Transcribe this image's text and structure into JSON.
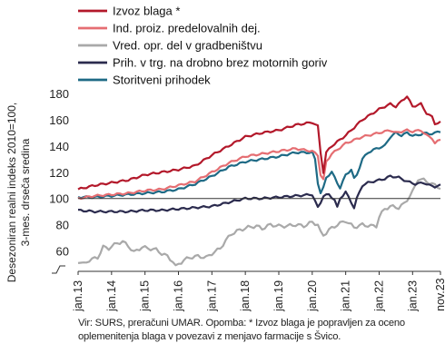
{
  "chart_data": {
    "type": "line",
    "ylabel_lines": [
      "Desezoniran realni indeks 2010=100,",
      "3-mes. drseča sredina"
    ],
    "ylim": [
      50,
      180
    ],
    "y_ticks": [
      60,
      80,
      100,
      120,
      140,
      160,
      180
    ],
    "x_ticks": [
      "jan.13",
      "jan.14",
      "jan.15",
      "jan.16",
      "jan.17",
      "jan.18",
      "jan.19",
      "jan.20",
      "jan.21",
      "jan.22",
      "jan.23",
      "nov.23"
    ],
    "x_tick_index": [
      0,
      12,
      24,
      36,
      48,
      60,
      72,
      84,
      96,
      108,
      120,
      130
    ],
    "x_start": "2013-01",
    "x_end": "2023-11",
    "reference_line": 100,
    "axis_break": true,
    "legend_position": "top-right",
    "series": [
      {
        "name": "Izvoz blaga *",
        "color": "#b3182a",
        "anchors": [
          [
            0,
            107
          ],
          [
            6,
            110
          ],
          [
            12,
            112
          ],
          [
            18,
            114
          ],
          [
            24,
            118
          ],
          [
            30,
            120
          ],
          [
            36,
            122
          ],
          [
            42,
            125
          ],
          [
            48,
            133
          ],
          [
            54,
            140
          ],
          [
            60,
            147
          ],
          [
            66,
            150
          ],
          [
            72,
            152
          ],
          [
            78,
            156
          ],
          [
            84,
            158
          ],
          [
            86,
            155
          ],
          [
            87,
            135
          ],
          [
            88,
            120
          ],
          [
            89,
            135
          ],
          [
            91,
            140
          ],
          [
            96,
            148
          ],
          [
            102,
            160
          ],
          [
            108,
            168
          ],
          [
            112,
            172
          ],
          [
            114,
            170
          ],
          [
            116,
            174
          ],
          [
            118,
            178
          ],
          [
            120,
            170
          ],
          [
            123,
            172
          ],
          [
            125,
            165
          ],
          [
            127,
            162
          ],
          [
            128,
            157
          ],
          [
            130,
            158
          ]
        ]
      },
      {
        "name": "Ind. proiz. predelovalnih dej.",
        "color": "#e56e72",
        "anchors": [
          [
            0,
            100
          ],
          [
            6,
            102
          ],
          [
            12,
            103
          ],
          [
            18,
            104
          ],
          [
            24,
            106
          ],
          [
            30,
            107
          ],
          [
            36,
            110
          ],
          [
            42,
            113
          ],
          [
            48,
            120
          ],
          [
            54,
            127
          ],
          [
            60,
            132
          ],
          [
            66,
            134
          ],
          [
            72,
            136
          ],
          [
            78,
            138
          ],
          [
            84,
            136
          ],
          [
            86,
            133
          ],
          [
            87,
            118
          ],
          [
            88,
            114
          ],
          [
            89,
            128
          ],
          [
            91,
            134
          ],
          [
            96,
            142
          ],
          [
            102,
            147
          ],
          [
            108,
            150
          ],
          [
            112,
            152
          ],
          [
            114,
            150
          ],
          [
            118,
            152
          ],
          [
            120,
            151
          ],
          [
            123,
            152
          ],
          [
            125,
            148
          ],
          [
            127,
            146
          ],
          [
            128,
            142
          ],
          [
            130,
            145
          ]
        ]
      },
      {
        "name": "Vred. opr. del v gradbeništvu",
        "color": "#a9a9a9",
        "anchors": [
          [
            0,
            52
          ],
          [
            2,
            50
          ],
          [
            4,
            53
          ],
          [
            7,
            55
          ],
          [
            9,
            63
          ],
          [
            11,
            62
          ],
          [
            14,
            66
          ],
          [
            16,
            67
          ],
          [
            18,
            64
          ],
          [
            20,
            59
          ],
          [
            23,
            63
          ],
          [
            25,
            62
          ],
          [
            28,
            61
          ],
          [
            30,
            58
          ],
          [
            32,
            56
          ],
          [
            34,
            52
          ],
          [
            35,
            48
          ],
          [
            36,
            50
          ],
          [
            38,
            53
          ],
          [
            40,
            55
          ],
          [
            43,
            56
          ],
          [
            46,
            55
          ],
          [
            48,
            58
          ],
          [
            51,
            62
          ],
          [
            53,
            68
          ],
          [
            55,
            73
          ],
          [
            58,
            76
          ],
          [
            61,
            78
          ],
          [
            64,
            79
          ],
          [
            66,
            77
          ],
          [
            69,
            80
          ],
          [
            72,
            79
          ],
          [
            75,
            79
          ],
          [
            78,
            80
          ],
          [
            81,
            79
          ],
          [
            84,
            82
          ],
          [
            86,
            80
          ],
          [
            87,
            74
          ],
          [
            88,
            72
          ],
          [
            90,
            76
          ],
          [
            93,
            80
          ],
          [
            96,
            83
          ],
          [
            99,
            78
          ],
          [
            102,
            80
          ],
          [
            105,
            79
          ],
          [
            107,
            79
          ],
          [
            108,
            86
          ],
          [
            110,
            92
          ],
          [
            112,
            94
          ],
          [
            115,
            93
          ],
          [
            117,
            96
          ],
          [
            120,
            105
          ],
          [
            122,
            115
          ],
          [
            124,
            114
          ],
          [
            126,
            112
          ],
          [
            128,
            110
          ],
          [
            130,
            108
          ]
        ]
      },
      {
        "name": "Prih. v trg. na drobno brez motornih goriv",
        "color": "#2b2b4e",
        "anchors": [
          [
            0,
            91
          ],
          [
            6,
            90
          ],
          [
            12,
            90
          ],
          [
            18,
            90
          ],
          [
            24,
            91
          ],
          [
            30,
            91
          ],
          [
            36,
            92
          ],
          [
            42,
            93
          ],
          [
            48,
            94
          ],
          [
            54,
            97
          ],
          [
            60,
            100
          ],
          [
            66,
            100
          ],
          [
            72,
            101
          ],
          [
            78,
            102
          ],
          [
            84,
            103
          ],
          [
            85,
            98
          ],
          [
            86,
            93
          ],
          [
            87,
            97
          ],
          [
            88,
            102
          ],
          [
            90,
            103
          ],
          [
            92,
            99
          ],
          [
            93,
            93
          ],
          [
            94,
            100
          ],
          [
            96,
            105
          ],
          [
            98,
            97
          ],
          [
            99,
            93
          ],
          [
            100,
            100
          ],
          [
            102,
            110
          ],
          [
            104,
            112
          ],
          [
            106,
            113
          ],
          [
            108,
            114
          ],
          [
            110,
            115
          ],
          [
            112,
            117
          ],
          [
            115,
            116
          ],
          [
            118,
            113
          ],
          [
            121,
            111
          ],
          [
            124,
            112
          ],
          [
            126,
            110
          ],
          [
            128,
            109
          ],
          [
            130,
            110
          ]
        ]
      },
      {
        "name": "Storitveni prihodek",
        "color": "#1e6a85",
        "anchors": [
          [
            0,
            101
          ],
          [
            6,
            101
          ],
          [
            12,
            102
          ],
          [
            18,
            103
          ],
          [
            24,
            104
          ],
          [
            30,
            105
          ],
          [
            36,
            107
          ],
          [
            42,
            111
          ],
          [
            48,
            117
          ],
          [
            54,
            124
          ],
          [
            60,
            128
          ],
          [
            66,
            130
          ],
          [
            72,
            132
          ],
          [
            78,
            135
          ],
          [
            84,
            135
          ],
          [
            85,
            130
          ],
          [
            86,
            112
          ],
          [
            87,
            104
          ],
          [
            88,
            108
          ],
          [
            89,
            116
          ],
          [
            91,
            120
          ],
          [
            93,
            112
          ],
          [
            94,
            108
          ],
          [
            96,
            118
          ],
          [
            98,
            122
          ],
          [
            99,
            115
          ],
          [
            100,
            118
          ],
          [
            102,
            130
          ],
          [
            104,
            135
          ],
          [
            107,
            138
          ],
          [
            110,
            140
          ],
          [
            112,
            147
          ],
          [
            114,
            150
          ],
          [
            116,
            148
          ],
          [
            118,
            150
          ],
          [
            120,
            148
          ],
          [
            122,
            148
          ],
          [
            124,
            150
          ],
          [
            126,
            149
          ],
          [
            128,
            150
          ],
          [
            130,
            151
          ]
        ]
      }
    ]
  },
  "source": "Vir: SURS, preračuni UMAR. Opomba: * Izvoz blaga je popravljen za oceno oplemenitenja blaga v povezavi z menjavo farmacije s Švico."
}
